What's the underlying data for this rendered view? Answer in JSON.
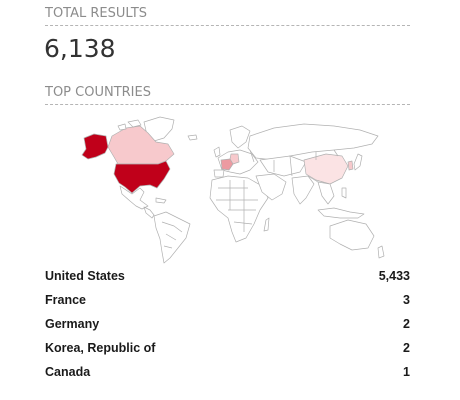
{
  "total_results": {
    "heading": "TOTAL RESULTS",
    "value": "6,138"
  },
  "top_countries": {
    "heading": "TOP COUNTRIES",
    "colors": {
      "base": "#ffffff",
      "stroke": "#b0b0b0",
      "highest": "#c0001a",
      "low": "#f7c9cc",
      "mid": "#ec9aa1"
    },
    "map_highlights": [
      {
        "country": "United States",
        "color": "#c0001a"
      },
      {
        "country": "Alaska (United States)",
        "color": "#c0001a"
      },
      {
        "country": "Canada",
        "color": "#f7c9cc"
      },
      {
        "country": "France",
        "color": "#ec9aa1"
      },
      {
        "country": "Germany",
        "color": "#f7c9cc"
      },
      {
        "country": "Korea, Republic of",
        "color": "#f7c9cc"
      },
      {
        "country": "China",
        "color": "#fbe3e4"
      }
    ],
    "list": [
      {
        "country": "United States",
        "count": "5,433"
      },
      {
        "country": "France",
        "count": "3"
      },
      {
        "country": "Germany",
        "count": "2"
      },
      {
        "country": "Korea, Republic of",
        "count": "2"
      },
      {
        "country": "Canada",
        "count": "1"
      }
    ]
  }
}
